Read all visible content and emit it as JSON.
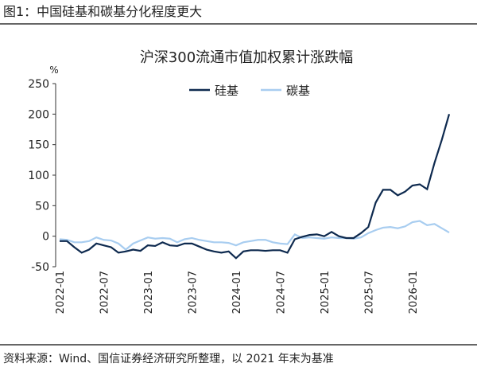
{
  "header": "图1：中国硅基和碳基分化程度更大",
  "source": "资料来源：Wind、国信证券经济研究所整理，以 2021 年末为基准",
  "chart_data": {
    "type": "line",
    "title": "沪深300流通市值加权累计涨跌幅",
    "y_unit": "%",
    "categories": [
      "2022-01",
      null,
      null,
      null,
      null,
      null,
      "2022-07",
      null,
      null,
      null,
      null,
      null,
      "2023-01",
      null,
      null,
      null,
      null,
      null,
      "2023-07",
      null,
      null,
      null,
      null,
      null,
      "2024-01",
      null,
      null,
      null,
      null,
      null,
      "2024-07",
      null,
      null,
      null,
      null,
      null,
      "2025-01",
      null,
      null,
      null,
      null,
      null,
      "2025-07",
      null,
      null,
      null,
      null,
      null,
      "2026-01",
      null,
      null,
      null,
      null,
      null
    ],
    "series": [
      {
        "name": "硅基",
        "color": "#0e2a4f",
        "values": [
          -8,
          -8,
          -18,
          -27,
          -22,
          -12,
          -15,
          -18,
          -27,
          -25,
          -22,
          -24,
          -15,
          -16,
          -10,
          -15,
          -16,
          -12,
          -12,
          -17,
          -22,
          -25,
          -27,
          -25,
          -36,
          -25,
          -23,
          -23,
          -24,
          -23,
          -23,
          -27,
          -5,
          -1,
          2,
          3,
          0,
          7,
          0,
          -3,
          -3,
          5,
          15,
          55,
          76,
          76,
          67,
          73,
          83,
          85,
          77,
          120,
          158,
          200
        ]
      },
      {
        "name": "碳基",
        "color": "#a8cdf0",
        "values": [
          -5,
          -6,
          -10,
          -10,
          -8,
          -2,
          -6,
          -7,
          -12,
          -22,
          -12,
          -7,
          -2,
          -4,
          -3,
          -4,
          -10,
          -5,
          -3,
          -6,
          -8,
          -10,
          -10,
          -11,
          -15,
          -10,
          -8,
          -6,
          -6,
          -10,
          -12,
          -13,
          3,
          -3,
          -2,
          -3,
          -4,
          -2,
          -3,
          -3,
          -4,
          -2,
          5,
          10,
          14,
          15,
          13,
          16,
          23,
          25,
          18,
          20,
          13,
          6
        ]
      }
    ],
    "ylim": [
      -50,
      250
    ],
    "yticks": [
      -50,
      0,
      50,
      100,
      150,
      200,
      250
    ],
    "legend": "top-right"
  }
}
